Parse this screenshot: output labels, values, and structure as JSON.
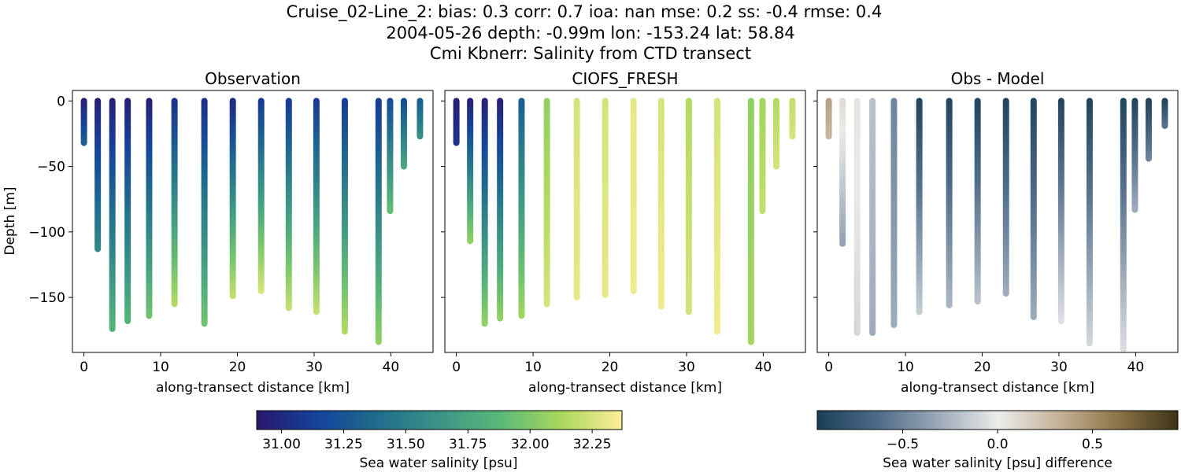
{
  "figure": {
    "title_lines": [
      "Cruise_02-Line_2: bias: 0.3  corr: 0.7  ioa: nan  mse: 0.2  ss: -0.4  rmse: 0.4",
      "2004-05-26 depth: -0.99m lon: -153.24 lat: 58.84",
      "Cmi Kbnerr: Salinity from CTD transect"
    ]
  },
  "chart_data": [
    {
      "type": "scatter",
      "title": "Observation",
      "xlabel": "along-transect distance [km]",
      "ylabel": "Depth [m]",
      "xlim": [
        -1.5,
        45.5
      ],
      "ylim": [
        -192,
        8
      ],
      "xticks": [
        0,
        10,
        20,
        30,
        40
      ],
      "yticks": [
        0,
        -50,
        -100,
        -150
      ],
      "colormap": "haline",
      "color_range": [
        30.9,
        32.37
      ],
      "casts": [
        {
          "x": 0.0,
          "max_depth": -32,
          "top_value": 30.95,
          "bottom_value": 31.3
        },
        {
          "x": 1.8,
          "max_depth": -113,
          "top_value": 30.95,
          "bottom_value": 31.55
        },
        {
          "x": 3.7,
          "max_depth": -174,
          "top_value": 30.95,
          "bottom_value": 31.85
        },
        {
          "x": 5.7,
          "max_depth": -168,
          "top_value": 30.95,
          "bottom_value": 31.85
        },
        {
          "x": 8.5,
          "max_depth": -164,
          "top_value": 30.95,
          "bottom_value": 31.95
        },
        {
          "x": 11.8,
          "max_depth": -155,
          "top_value": 31.05,
          "bottom_value": 32.15
        },
        {
          "x": 15.7,
          "max_depth": -170,
          "top_value": 31.05,
          "bottom_value": 31.95
        },
        {
          "x": 19.4,
          "max_depth": -149,
          "top_value": 31.0,
          "bottom_value": 32.2
        },
        {
          "x": 23.1,
          "max_depth": -145,
          "top_value": 31.1,
          "bottom_value": 32.25
        },
        {
          "x": 26.7,
          "max_depth": -158,
          "top_value": 31.1,
          "bottom_value": 32.2
        },
        {
          "x": 30.3,
          "max_depth": -161,
          "top_value": 31.1,
          "bottom_value": 32.2
        },
        {
          "x": 34.0,
          "max_depth": -176,
          "top_value": 31.1,
          "bottom_value": 32.15
        },
        {
          "x": 38.4,
          "max_depth": -184,
          "top_value": 31.1,
          "bottom_value": 32.05
        },
        {
          "x": 39.9,
          "max_depth": -84,
          "top_value": 31.2,
          "bottom_value": 31.9
        },
        {
          "x": 41.7,
          "max_depth": -50,
          "top_value": 31.2,
          "bottom_value": 31.75
        },
        {
          "x": 43.8,
          "max_depth": -27,
          "top_value": 31.3,
          "bottom_value": 31.6
        }
      ]
    },
    {
      "type": "scatter",
      "title": "CIOFS_FRESH",
      "xlabel": "along-transect distance [km]",
      "ylabel": "",
      "xlim": [
        -1.5,
        45.5
      ],
      "ylim": [
        -192,
        8
      ],
      "xticks": [
        0,
        10,
        20,
        30,
        40
      ],
      "yticks": [
        0,
        -50,
        -100,
        -150
      ],
      "colormap": "haline",
      "color_range": [
        30.9,
        32.37
      ],
      "casts": [
        {
          "x": 0.0,
          "max_depth": -32,
          "top_value": 30.95,
          "bottom_value": 31.05
        },
        {
          "x": 1.8,
          "max_depth": -107,
          "top_value": 30.95,
          "bottom_value": 32.05
        },
        {
          "x": 3.7,
          "max_depth": -170,
          "top_value": 30.95,
          "bottom_value": 32.05
        },
        {
          "x": 5.7,
          "max_depth": -166,
          "top_value": 30.95,
          "bottom_value": 32.05
        },
        {
          "x": 8.5,
          "max_depth": -164,
          "top_value": 31.3,
          "bottom_value": 32.1
        },
        {
          "x": 11.8,
          "max_depth": -155,
          "top_value": 32.05,
          "bottom_value": 32.25
        },
        {
          "x": 15.7,
          "max_depth": -150,
          "top_value": 32.25,
          "bottom_value": 32.3
        },
        {
          "x": 19.4,
          "max_depth": -148,
          "top_value": 32.25,
          "bottom_value": 32.3
        },
        {
          "x": 23.1,
          "max_depth": -145,
          "top_value": 32.3,
          "bottom_value": 32.33
        },
        {
          "x": 26.7,
          "max_depth": -157,
          "top_value": 32.25,
          "bottom_value": 32.33
        },
        {
          "x": 30.3,
          "max_depth": -161,
          "top_value": 32.15,
          "bottom_value": 32.25
        },
        {
          "x": 34.0,
          "max_depth": -176,
          "top_value": 32.25,
          "bottom_value": 32.33
        },
        {
          "x": 38.4,
          "max_depth": -184,
          "top_value": 32.05,
          "bottom_value": 32.1
        },
        {
          "x": 39.9,
          "max_depth": -84,
          "top_value": 32.1,
          "bottom_value": 32.2
        },
        {
          "x": 41.7,
          "max_depth": -50,
          "top_value": 32.15,
          "bottom_value": 32.25
        },
        {
          "x": 43.8,
          "max_depth": -27,
          "top_value": 32.2,
          "bottom_value": 32.25
        }
      ]
    },
    {
      "type": "scatter",
      "title": "Obs - Model",
      "xlabel": "along-transect distance [km]",
      "ylabel": "",
      "xlim": [
        -1.5,
        45.5
      ],
      "ylim": [
        -192,
        8
      ],
      "xticks": [
        0,
        10,
        20,
        30,
        40
      ],
      "yticks": [
        0,
        -50,
        -100,
        -150
      ],
      "colormap": "diff",
      "color_range": [
        -0.95,
        0.95
      ],
      "casts": [
        {
          "x": 0.0,
          "max_depth": -27,
          "top_value": 0.4,
          "bottom_value": 0.3
        },
        {
          "x": 1.8,
          "max_depth": -109,
          "top_value": 0.1,
          "bottom_value": -0.35
        },
        {
          "x": 3.7,
          "max_depth": -177,
          "top_value": 0.05,
          "bottom_value": -0.1
        },
        {
          "x": 5.7,
          "max_depth": -177,
          "top_value": -0.2,
          "bottom_value": -0.3
        },
        {
          "x": 8.5,
          "max_depth": -171,
          "top_value": -0.5,
          "bottom_value": -0.3
        },
        {
          "x": 11.8,
          "max_depth": -161,
          "top_value": -0.9,
          "bottom_value": -0.15
        },
        {
          "x": 15.7,
          "max_depth": -156,
          "top_value": -0.9,
          "bottom_value": -0.25
        },
        {
          "x": 19.4,
          "max_depth": -153,
          "top_value": -0.9,
          "bottom_value": -0.2
        },
        {
          "x": 23.1,
          "max_depth": -147,
          "top_value": -0.9,
          "bottom_value": -0.3
        },
        {
          "x": 26.7,
          "max_depth": -165,
          "top_value": -0.9,
          "bottom_value": -0.3
        },
        {
          "x": 30.3,
          "max_depth": -168,
          "top_value": -0.9,
          "bottom_value": -0.05
        },
        {
          "x": 34.0,
          "max_depth": -185,
          "top_value": -0.9,
          "bottom_value": -0.1
        },
        {
          "x": 38.4,
          "max_depth": -192,
          "top_value": -0.9,
          "bottom_value": -0.05
        },
        {
          "x": 39.9,
          "max_depth": -83,
          "top_value": -0.9,
          "bottom_value": -0.3
        },
        {
          "x": 41.7,
          "max_depth": -44,
          "top_value": -0.9,
          "bottom_value": -0.5
        },
        {
          "x": 43.8,
          "max_depth": -19,
          "top_value": -0.9,
          "bottom_value": -0.6
        }
      ]
    }
  ],
  "colorbars": [
    {
      "label": "Sea water salinity [psu]",
      "range": [
        30.9,
        32.37
      ],
      "ticks": [
        31.0,
        31.25,
        31.5,
        31.75,
        32.0,
        32.25
      ],
      "tick_labels": [
        "31.00",
        "31.25",
        "31.50",
        "31.75",
        "32.00",
        "32.25"
      ],
      "colormap": "haline"
    },
    {
      "label": "Sea water salinity [psu] difference",
      "range": [
        -0.95,
        0.95
      ],
      "ticks": [
        -0.5,
        0.0,
        0.5
      ],
      "tick_labels": [
        "−0.5",
        "0.0",
        "0.5"
      ],
      "colormap": "diff"
    }
  ],
  "colormaps": {
    "haline": [
      "#2a186c",
      "#14439c",
      "#206e8b",
      "#3c9387",
      "#5ab978",
      "#aad85c",
      "#fdef9a"
    ],
    "diff": [
      "#1c3e56",
      "#4e6b88",
      "#9aa8b7",
      "#ebeceb",
      "#c6b39a",
      "#8d7447",
      "#3c3218"
    ]
  }
}
